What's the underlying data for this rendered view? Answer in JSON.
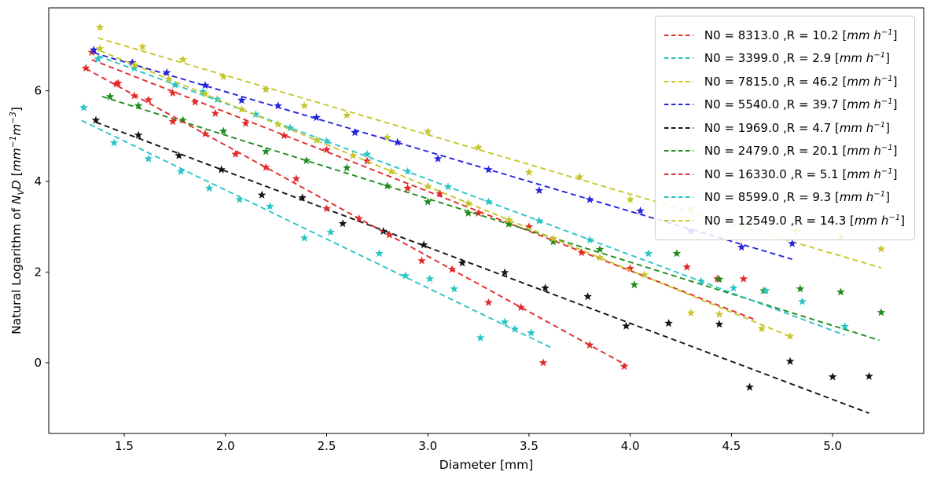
{
  "figure": {
    "xlabel": "Diameter [mm]",
    "ylabel_plain": "Natural Logarithm of N_VD [mm^-1 m^-3]",
    "ylabel_parts": [
      {
        "text": "Natural Logarithm of ",
        "style": "normal"
      },
      {
        "text": "N",
        "style": "italic"
      },
      {
        "text": "V",
        "style": "sub"
      },
      {
        "text": "D",
        "style": "italic"
      },
      {
        "text": " [",
        "style": "normal"
      },
      {
        "text": "mm",
        "style": "italic"
      },
      {
        "text": "−1",
        "style": "sup"
      },
      {
        "text": "m",
        "style": "italic"
      },
      {
        "text": "−3",
        "style": "sup"
      },
      {
        "text": "]",
        "style": "normal"
      }
    ],
    "x_tick_labels": [
      "1.5",
      "2.0",
      "2.5",
      "3.0",
      "3.5",
      "4.0",
      "4.5",
      "5.0"
    ],
    "x_tick_values": [
      1.5,
      2.0,
      2.5,
      3.0,
      3.5,
      4.0,
      4.5,
      5.0
    ],
    "y_tick_labels": [
      "0",
      "2",
      "4",
      "6"
    ],
    "y_tick_values": [
      0,
      2,
      4,
      6
    ]
  },
  "legend": {
    "position": "upper-right",
    "prefix": "N0 = ",
    "mid": " ,R = ",
    "open": " [",
    "unit_italic": "mm h",
    "unit_sup": "−1",
    "close": "]"
  },
  "chart_data": {
    "type": "scatter",
    "title": "",
    "xlabel": "Diameter [mm]",
    "ylabel": "Natural Logarithm of N_VD [mm^-1 m^-3]",
    "xlim": [
      1.127,
      5.45
    ],
    "ylim": [
      -1.56,
      7.83
    ],
    "grid": false,
    "legend_position": "upper right",
    "marker": "star",
    "line_style": "dashed",
    "series": [
      {
        "name": "N0 = 8313.0 ,R = 10.2 [mm h^-1]",
        "n0": "8313.0",
        "r": "10.2",
        "color": "#e32929",
        "fit": {
          "intercept": 9.03,
          "slope": -1.75,
          "x_start": 1.34,
          "x_end": 4.61
        },
        "points": [
          [
            1.34,
            6.85
          ],
          [
            1.46,
            6.15
          ],
          [
            1.55,
            5.89
          ],
          [
            1.74,
            5.95
          ],
          [
            1.85,
            5.75
          ],
          [
            1.95,
            5.5
          ],
          [
            2.1,
            5.28
          ],
          [
            2.29,
            5.01
          ],
          [
            2.5,
            4.7
          ],
          [
            2.7,
            4.45
          ],
          [
            2.9,
            3.85
          ],
          [
            3.06,
            3.73
          ],
          [
            3.25,
            3.3
          ],
          [
            3.5,
            3.0
          ],
          [
            3.76,
            2.43
          ],
          [
            4.0,
            2.08
          ],
          [
            4.28,
            2.11
          ],
          [
            4.43,
            1.85
          ],
          [
            4.56,
            1.85
          ]
        ]
      },
      {
        "name": "N0 = 3399.0 ,R = 2.9 [mm h^-1]",
        "n0": "3399.0",
        "r": "2.9",
        "color": "#29c5c5",
        "fit": {
          "intercept": 8.13,
          "slope": -2.16,
          "x_start": 1.29,
          "x_end": 3.62
        },
        "points": [
          [
            1.3,
            5.63
          ],
          [
            1.45,
            4.85
          ],
          [
            1.62,
            4.5
          ],
          [
            1.78,
            4.22
          ],
          [
            1.92,
            3.85
          ],
          [
            2.07,
            3.6
          ],
          [
            2.22,
            3.45
          ],
          [
            2.39,
            2.75
          ],
          [
            2.52,
            2.88
          ],
          [
            2.76,
            2.41
          ],
          [
            2.89,
            1.92
          ],
          [
            3.01,
            1.85
          ],
          [
            3.13,
            1.63
          ],
          [
            3.26,
            0.55
          ],
          [
            3.38,
            0.9
          ],
          [
            3.43,
            0.74
          ],
          [
            3.51,
            0.66
          ]
        ]
      },
      {
        "name": "N0 = 7815.0 ,R = 46.2 [mm h^-1]",
        "n0": "7815.0",
        "r": "46.2",
        "color": "#c6c62c",
        "fit": {
          "intercept": 8.96,
          "slope": -1.31,
          "x_start": 1.37,
          "x_end": 5.24
        },
        "points": [
          [
            1.38,
            7.4
          ],
          [
            1.59,
            6.97
          ],
          [
            1.79,
            6.69
          ],
          [
            1.99,
            6.31
          ],
          [
            2.2,
            6.03
          ],
          [
            2.39,
            5.67
          ],
          [
            2.6,
            5.46
          ],
          [
            2.8,
            4.97
          ],
          [
            3.0,
            5.1
          ],
          [
            3.25,
            4.75
          ],
          [
            3.5,
            4.2
          ],
          [
            3.75,
            4.1
          ],
          [
            4.0,
            3.6
          ],
          [
            4.3,
            3.4
          ],
          [
            4.6,
            3.1
          ],
          [
            4.82,
            2.9
          ],
          [
            5.04,
            2.77
          ],
          [
            5.24,
            2.51
          ]
        ]
      },
      {
        "name": "N0 = 5540.0 ,R = 39.7 [mm h^-1]",
        "n0": "5540.0",
        "r": "39.7",
        "color": "#2525dd",
        "fit": {
          "intercept": 8.62,
          "slope": -1.32,
          "x_start": 1.35,
          "x_end": 4.8
        },
        "points": [
          [
            1.35,
            6.9
          ],
          [
            1.54,
            6.62
          ],
          [
            1.71,
            6.4
          ],
          [
            1.9,
            6.12
          ],
          [
            2.08,
            5.79
          ],
          [
            2.26,
            5.67
          ],
          [
            2.45,
            5.41
          ],
          [
            2.64,
            5.08
          ],
          [
            2.85,
            4.86
          ],
          [
            3.05,
            4.5
          ],
          [
            3.3,
            4.26
          ],
          [
            3.55,
            3.8
          ],
          [
            3.8,
            3.6
          ],
          [
            4.05,
            3.35
          ],
          [
            4.3,
            2.9
          ],
          [
            4.55,
            2.55
          ],
          [
            4.8,
            2.63
          ]
        ]
      },
      {
        "name": "N0 = 1969.0 ,R = 4.7 [mm h^-1]",
        "n0": "1969.0",
        "r": "4.7",
        "color": "#141414",
        "fit": {
          "intercept": 7.59,
          "slope": -1.68,
          "x_start": 1.36,
          "x_end": 5.18
        },
        "points": [
          [
            1.36,
            5.35
          ],
          [
            1.57,
            5.02
          ],
          [
            1.77,
            4.57
          ],
          [
            1.98,
            4.26
          ],
          [
            2.18,
            3.7
          ],
          [
            2.38,
            3.64
          ],
          [
            2.58,
            3.07
          ],
          [
            2.78,
            2.9
          ],
          [
            2.98,
            2.6
          ],
          [
            3.17,
            2.2
          ],
          [
            3.38,
            1.99
          ],
          [
            3.58,
            1.65
          ],
          [
            3.79,
            1.46
          ],
          [
            3.98,
            0.81
          ],
          [
            4.19,
            0.87
          ],
          [
            4.44,
            0.85
          ],
          [
            4.59,
            -0.54
          ],
          [
            4.79,
            0.03
          ],
          [
            5.0,
            -0.31
          ],
          [
            5.18,
            -0.3
          ]
        ]
      },
      {
        "name": "N0 = 2479.0 ,R = 20.1 [mm h^-1]",
        "n0": "2479.0",
        "r": "20.1",
        "color": "#1e8c1e",
        "fit": {
          "intercept": 7.82,
          "slope": -1.4,
          "x_start": 1.39,
          "x_end": 5.23
        },
        "points": [
          [
            1.43,
            5.87
          ],
          [
            1.57,
            5.67
          ],
          [
            1.79,
            5.35
          ],
          [
            1.99,
            5.11
          ],
          [
            2.2,
            4.66
          ],
          [
            2.4,
            4.46
          ],
          [
            2.6,
            4.3
          ],
          [
            2.8,
            3.9
          ],
          [
            3.0,
            3.55
          ],
          [
            3.2,
            3.3
          ],
          [
            3.4,
            3.06
          ],
          [
            3.62,
            2.67
          ],
          [
            3.85,
            2.5
          ],
          [
            4.02,
            1.72
          ],
          [
            4.23,
            2.41
          ],
          [
            4.44,
            1.84
          ],
          [
            4.66,
            1.59
          ],
          [
            4.84,
            1.63
          ],
          [
            5.04,
            1.56
          ],
          [
            5.24,
            1.11
          ]
        ]
      },
      {
        "name": "N0 = 16330.0 ,R = 5.1 [mm h^-1]",
        "n0": "16330.0",
        "r": "5.1",
        "color": "#e32929",
        "fit": {
          "intercept": 9.7,
          "slope": -2.45,
          "x_start": 1.31,
          "x_end": 3.98
        },
        "points": [
          [
            1.31,
            6.5
          ],
          [
            1.47,
            6.17
          ],
          [
            1.62,
            5.8
          ],
          [
            1.74,
            5.32
          ],
          [
            1.9,
            5.05
          ],
          [
            2.05,
            4.6
          ],
          [
            2.2,
            4.31
          ],
          [
            2.35,
            4.06
          ],
          [
            2.5,
            3.4
          ],
          [
            2.66,
            3.18
          ],
          [
            2.81,
            2.82
          ],
          [
            2.97,
            2.25
          ],
          [
            3.12,
            2.06
          ],
          [
            3.3,
            1.33
          ],
          [
            3.46,
            1.22
          ],
          [
            3.57,
            0.0
          ],
          [
            3.8,
            0.39
          ],
          [
            3.97,
            -0.08
          ]
        ]
      },
      {
        "name": "N0 = 8599.0 ,R = 9.3 [mm h^-1]",
        "n0": "8599.0",
        "r": "9.3",
        "color": "#29c5c5",
        "fit": {
          "intercept": 9.06,
          "slope": -1.67,
          "x_start": 1.37,
          "x_end": 5.06
        },
        "points": [
          [
            1.37,
            6.7
          ],
          [
            1.55,
            6.5
          ],
          [
            1.75,
            6.13
          ],
          [
            1.89,
            5.98
          ],
          [
            1.96,
            5.81
          ],
          [
            2.15,
            5.48
          ],
          [
            2.32,
            5.18
          ],
          [
            2.5,
            4.89
          ],
          [
            2.7,
            4.6
          ],
          [
            2.9,
            4.22
          ],
          [
            3.1,
            3.88
          ],
          [
            3.3,
            3.55
          ],
          [
            3.55,
            3.13
          ],
          [
            3.8,
            2.71
          ],
          [
            4.09,
            2.41
          ],
          [
            4.35,
            1.8
          ],
          [
            4.51,
            1.65
          ],
          [
            4.67,
            1.59
          ],
          [
            4.85,
            1.35
          ],
          [
            5.06,
            0.8
          ]
        ]
      },
      {
        "name": "N0 = 12549.0 ,R = 14.3 [mm h^-1]",
        "n0": "12549.0",
        "r": "14.3",
        "color": "#c6c62c",
        "fit": {
          "intercept": 9.44,
          "slope": -1.85,
          "x_start": 1.38,
          "x_end": 4.79
        },
        "points": [
          [
            1.38,
            6.93
          ],
          [
            1.55,
            6.57
          ],
          [
            1.72,
            6.26
          ],
          [
            1.9,
            5.93
          ],
          [
            2.08,
            5.59
          ],
          [
            2.26,
            5.26
          ],
          [
            2.45,
            4.91
          ],
          [
            2.63,
            4.57
          ],
          [
            2.82,
            4.22
          ],
          [
            3.0,
            3.89
          ],
          [
            3.2,
            3.52
          ],
          [
            3.4,
            3.15
          ],
          [
            3.62,
            2.74
          ],
          [
            3.85,
            2.32
          ],
          [
            4.07,
            1.94
          ],
          [
            4.3,
            1.1
          ],
          [
            4.44,
            1.07
          ],
          [
            4.65,
            0.75
          ],
          [
            4.79,
            0.58
          ]
        ]
      }
    ]
  }
}
